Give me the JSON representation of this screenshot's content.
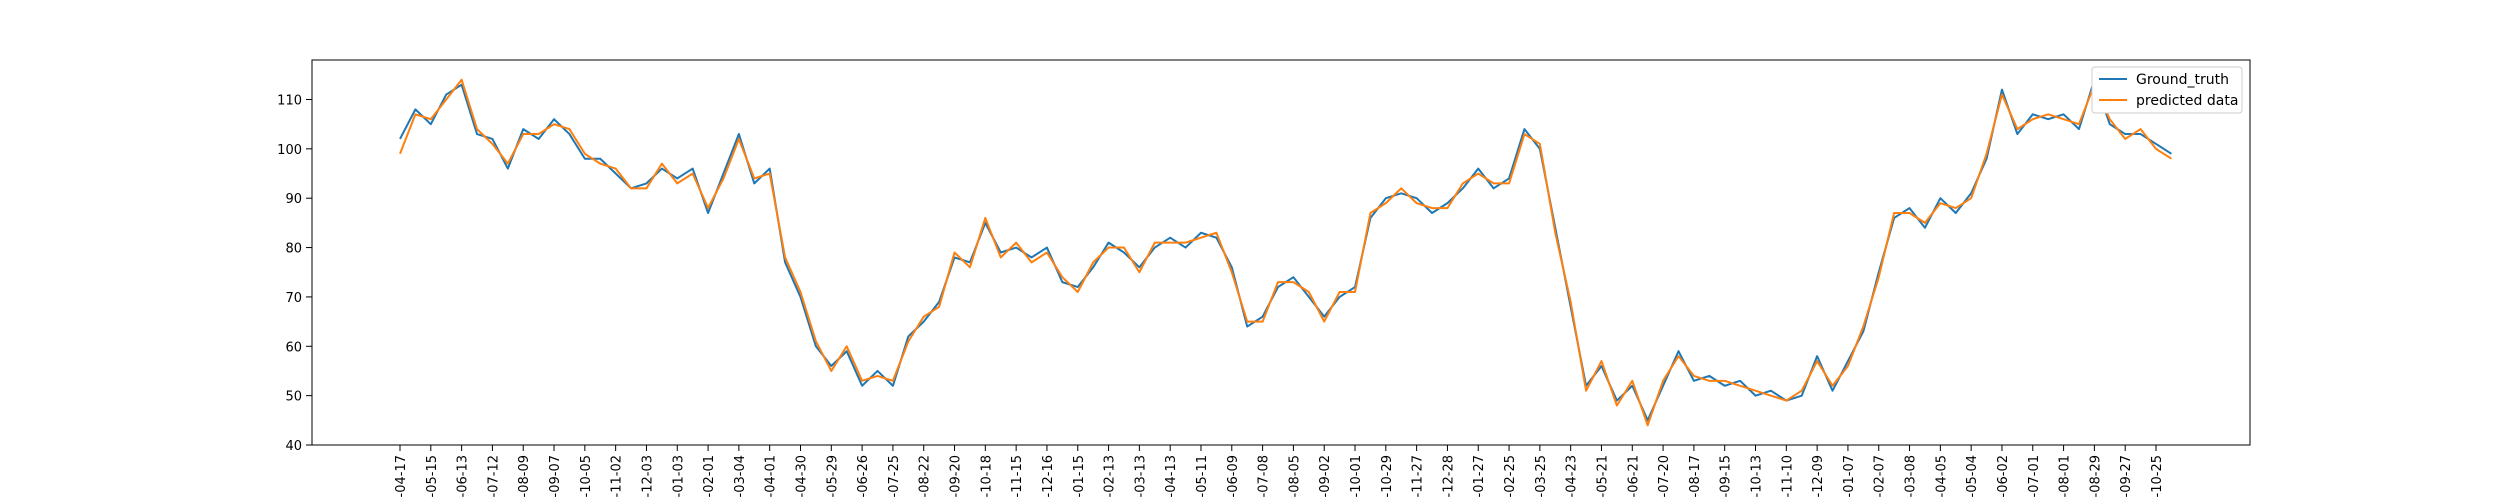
{
  "chart_data": {
    "type": "line",
    "title": "",
    "xlabel": "",
    "ylabel": "",
    "ylim": [
      40,
      118
    ],
    "yticks": [
      40,
      50,
      60,
      70,
      80,
      90,
      100,
      110
    ],
    "grid": false,
    "legend_placement": "top-right",
    "x_tick_labels": [
      "-04-17",
      "-05-15",
      "-06-13",
      "-07-12",
      "-08-09",
      "-09-07",
      "-10-05",
      "-11-02",
      "-12-03",
      "-01-03",
      "-02-01",
      "-03-04",
      "-04-01",
      "-04-30",
      "-05-29",
      "-06-26",
      "-07-25",
      "-08-22",
      "-09-20",
      "-10-18",
      "-11-15",
      "-12-16",
      "-01-15",
      "-02-13",
      "-03-13",
      "-04-13",
      "-05-11",
      "-06-09",
      "-07-08",
      "-08-05",
      "-09-02",
      "-10-01",
      "-10-29",
      "-11-27",
      "-12-28",
      "-01-27",
      "-02-25",
      "-03-25",
      "-04-23",
      "-05-21",
      "-06-21",
      "-07-20",
      "-08-17",
      "-09-15",
      "-10-13",
      "-11-10",
      "-12-09",
      "-01-07",
      "-02-07",
      "-03-08",
      "-04-05",
      "-05-04",
      "-06-02",
      "-07-01",
      "-08-01",
      "-08-29",
      "-09-27",
      "-10-25"
    ],
    "series": [
      {
        "name": "Ground_truth",
        "color": "#1f77b4",
        "x": [
          0,
          0.5,
          1,
          1.5,
          2,
          2.5,
          3,
          3.5,
          4,
          4.5,
          5,
          5.5,
          6,
          6.5,
          7,
          7.5,
          8,
          8.5,
          9,
          9.5,
          10,
          10.5,
          11,
          11.5,
          12,
          12.5,
          13,
          13.5,
          14,
          14.5,
          15,
          15.5,
          16,
          16.5,
          17,
          17.5,
          18,
          18.5,
          19,
          19.5,
          20,
          20.5,
          21,
          21.5,
          22,
          22.5,
          23,
          23.5,
          24,
          24.5,
          25,
          25.5,
          26,
          26.5,
          27,
          27.5,
          28,
          28.5,
          29,
          29.5,
          30,
          30.5,
          31,
          31.5,
          32,
          32.5,
          33,
          33.5,
          34,
          34.5,
          35,
          35.5,
          36,
          36.5,
          37,
          37.5,
          38,
          38.5,
          39,
          39.5,
          40,
          40.5,
          41,
          41.5,
          42,
          42.5,
          43,
          43.5,
          44,
          44.5,
          45,
          45.5,
          46,
          46.5,
          47,
          47.5,
          48,
          48.5,
          49,
          49.5,
          50,
          50.5,
          51,
          51.5,
          52,
          52.5,
          53,
          53.5,
          54,
          54.5,
          55,
          55.5,
          56,
          56.5,
          57,
          57.5
        ],
        "values": [
          102,
          108,
          105,
          111,
          113,
          103,
          102,
          96,
          104,
          102,
          106,
          103,
          98,
          98,
          95,
          92,
          93,
          96,
          94,
          96,
          87,
          95,
          103,
          93,
          96,
          77,
          70,
          60,
          56,
          59,
          52,
          55,
          52,
          62,
          65,
          69,
          78,
          77,
          85,
          79,
          80,
          78,
          80,
          73,
          72,
          76,
          81,
          79,
          76,
          80,
          82,
          80,
          83,
          82,
          76,
          64,
          66,
          72,
          74,
          70,
          66,
          70,
          72,
          86,
          90,
          91,
          90,
          87,
          89,
          92,
          96,
          92,
          94,
          104,
          100,
          84,
          68,
          52,
          56,
          49,
          52,
          45,
          52,
          59,
          53,
          54,
          52,
          53,
          50,
          51,
          49,
          50,
          58,
          51,
          57,
          63,
          75,
          86,
          88,
          84,
          90,
          87,
          91,
          98,
          112,
          103,
          107,
          106,
          107,
          104,
          114,
          105,
          103,
          103,
          101,
          99
        ]
      },
      {
        "name": "predicted data",
        "color": "#ff7f0e",
        "x": [
          0,
          0.5,
          1,
          1.5,
          2,
          2.5,
          3,
          3.5,
          4,
          4.5,
          5,
          5.5,
          6,
          6.5,
          7,
          7.5,
          8,
          8.5,
          9,
          9.5,
          10,
          10.5,
          11,
          11.5,
          12,
          12.5,
          13,
          13.5,
          14,
          14.5,
          15,
          15.5,
          16,
          16.5,
          17,
          17.5,
          18,
          18.5,
          19,
          19.5,
          20,
          20.5,
          21,
          21.5,
          22,
          22.5,
          23,
          23.5,
          24,
          24.5,
          25,
          25.5,
          26,
          26.5,
          27,
          27.5,
          28,
          28.5,
          29,
          29.5,
          30,
          30.5,
          31,
          31.5,
          32,
          32.5,
          33,
          33.5,
          34,
          34.5,
          35,
          35.5,
          36,
          36.5,
          37,
          37.5,
          38,
          38.5,
          39,
          39.5,
          40,
          40.5,
          41,
          41.5,
          42,
          42.5,
          43,
          43.5,
          44,
          44.5,
          45,
          45.5,
          46,
          46.5,
          47,
          47.5,
          48,
          48.5,
          49,
          49.5,
          50,
          50.5,
          51,
          51.5,
          52,
          52.5,
          53,
          53.5,
          54,
          54.5,
          55,
          55.5,
          56,
          56.5,
          57,
          57.5
        ],
        "values": [
          99,
          107,
          106,
          110,
          114,
          104,
          101,
          97,
          103,
          103,
          105,
          104,
          99,
          97,
          96,
          92,
          92,
          97,
          93,
          95,
          88,
          94,
          102,
          94,
          95,
          78,
          71,
          61,
          55,
          60,
          53,
          54,
          53,
          61,
          66,
          68,
          79,
          76,
          86,
          78,
          81,
          77,
          79,
          74,
          71,
          77,
          80,
          80,
          75,
          81,
          81,
          81,
          82,
          83,
          75,
          65,
          65,
          73,
          73,
          71,
          65,
          71,
          71,
          87,
          89,
          92,
          89,
          88,
          88,
          93,
          95,
          93,
          93,
          103,
          101,
          83,
          69,
          51,
          57,
          48,
          53,
          44,
          53,
          58,
          54,
          53,
          53,
          52,
          51,
          50,
          49,
          51,
          57,
          52,
          56,
          64,
          74,
          87,
          87,
          85,
          89,
          88,
          90,
          99,
          111,
          104,
          106,
          107,
          106,
          105,
          113,
          106,
          102,
          104,
          100,
          98
        ]
      }
    ]
  }
}
